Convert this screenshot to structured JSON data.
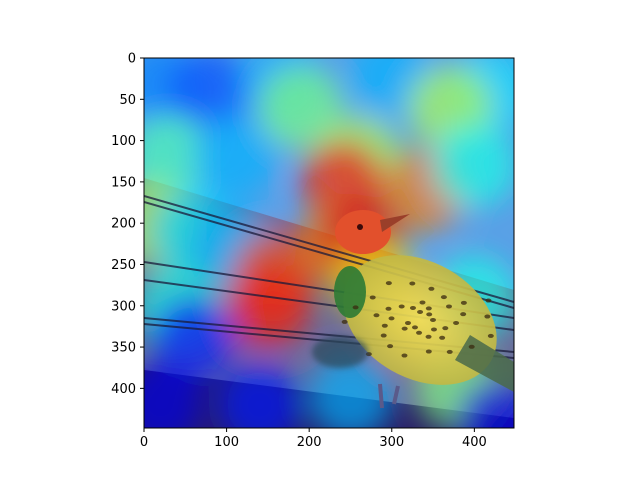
{
  "chart_data": {
    "type": "heatmap",
    "title": "",
    "xlabel": "",
    "ylabel": "",
    "xlim": [
      0,
      448
    ],
    "ylim": [
      448,
      0
    ],
    "x_ticks": [
      0,
      100,
      200,
      300,
      400
    ],
    "y_ticks": [
      0,
      50,
      100,
      150,
      200,
      250,
      300,
      350,
      400
    ],
    "x_tick_labels": [
      "0",
      "100",
      "200",
      "300",
      "400"
    ],
    "y_tick_labels": [
      "0",
      "50",
      "100",
      "150",
      "200",
      "250",
      "300",
      "350",
      "400"
    ],
    "colormap": "jet",
    "overlay": "attention heatmap over photo of a bird on wires",
    "grid": false,
    "heatmap_regions": [
      {
        "x": 20,
        "y": 30,
        "value": 0.25
      },
      {
        "x": 80,
        "y": 40,
        "value": 0.2
      },
      {
        "x": 170,
        "y": 30,
        "value": 0.3
      },
      {
        "x": 300,
        "y": 20,
        "value": 0.3
      },
      {
        "x": 420,
        "y": 40,
        "value": 0.35
      },
      {
        "x": 190,
        "y": 60,
        "value": 0.5
      },
      {
        "x": 370,
        "y": 60,
        "value": 0.55
      },
      {
        "x": 30,
        "y": 120,
        "value": 0.45
      },
      {
        "x": 110,
        "y": 120,
        "value": 0.3
      },
      {
        "x": 260,
        "y": 120,
        "value": 0.55
      },
      {
        "x": 240,
        "y": 150,
        "value": 0.85
      },
      {
        "x": 340,
        "y": 160,
        "value": 0.75
      },
      {
        "x": 400,
        "y": 130,
        "value": 0.4
      },
      {
        "x": 10,
        "y": 200,
        "value": 0.55
      },
      {
        "x": 60,
        "y": 210,
        "value": 0.35
      },
      {
        "x": 110,
        "y": 230,
        "value": 0.3
      },
      {
        "x": 160,
        "y": 260,
        "value": 0.8
      },
      {
        "x": 150,
        "y": 300,
        "value": 0.85
      },
      {
        "x": 240,
        "y": 220,
        "value": 0.75
      },
      {
        "x": 265,
        "y": 215,
        "value": 0.9
      },
      {
        "x": 280,
        "y": 270,
        "value": 0.65
      },
      {
        "x": 330,
        "y": 320,
        "value": 0.7
      },
      {
        "x": 400,
        "y": 290,
        "value": 0.4
      },
      {
        "x": 40,
        "y": 300,
        "value": 0.4
      },
      {
        "x": 60,
        "y": 340,
        "value": 0.15
      },
      {
        "x": 20,
        "y": 420,
        "value": 0.1
      },
      {
        "x": 140,
        "y": 420,
        "value": 0.15
      },
      {
        "x": 250,
        "y": 410,
        "value": 0.3
      },
      {
        "x": 380,
        "y": 400,
        "value": 0.5
      },
      {
        "x": 430,
        "y": 440,
        "value": 0.1
      }
    ]
  },
  "colors": {
    "frame": "#000000",
    "background": "#ffffff"
  }
}
